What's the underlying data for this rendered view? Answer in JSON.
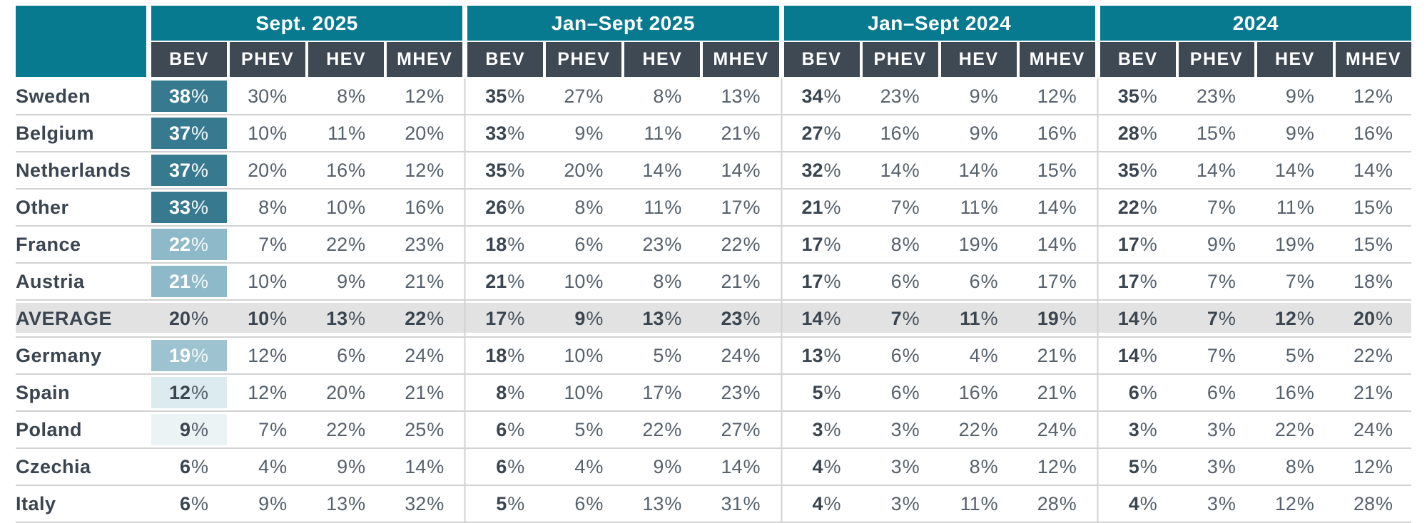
{
  "percent_sign": "%",
  "colors": {
    "teal_header": "#077a8f",
    "dark_header": "#3e4954",
    "average_row_bg": "#e2e2e2",
    "row_line": "#d2d2d2",
    "bold_text": "#3b4550",
    "value_text": "#57616c",
    "bev_fills": {
      "dark": "#377a90",
      "mid": "#8db9c9",
      "mid2": "#9dc3d0",
      "light": "#dcebef",
      "lighter": "#ebf3f5"
    }
  },
  "chart_data": {
    "type": "table",
    "unit": "%",
    "column_groups": [
      "Sept. 2025",
      "Jan–Sept 2025",
      "Jan–Sept 2024",
      "2024"
    ],
    "powertrains": [
      "BEV",
      "PHEV",
      "HEV",
      "MHEV"
    ],
    "rows": [
      {
        "label": "Sweden",
        "bev_fill": "dark",
        "bev_text": "white",
        "is_average": false,
        "values": [
          [
            38,
            30,
            8,
            12
          ],
          [
            35,
            27,
            8,
            13
          ],
          [
            34,
            23,
            9,
            12
          ],
          [
            35,
            23,
            9,
            12
          ]
        ]
      },
      {
        "label": "Belgium",
        "bev_fill": "dark",
        "bev_text": "white",
        "is_average": false,
        "values": [
          [
            37,
            10,
            11,
            20
          ],
          [
            33,
            9,
            11,
            21
          ],
          [
            27,
            16,
            9,
            16
          ],
          [
            28,
            15,
            9,
            16
          ]
        ]
      },
      {
        "label": "Netherlands",
        "bev_fill": "dark",
        "bev_text": "white",
        "is_average": false,
        "values": [
          [
            37,
            20,
            16,
            12
          ],
          [
            35,
            20,
            14,
            14
          ],
          [
            32,
            14,
            14,
            15
          ],
          [
            35,
            14,
            14,
            14
          ]
        ]
      },
      {
        "label": "Other",
        "bev_fill": "dark",
        "bev_text": "white",
        "is_average": false,
        "values": [
          [
            33,
            8,
            10,
            16
          ],
          [
            26,
            8,
            11,
            17
          ],
          [
            21,
            7,
            11,
            14
          ],
          [
            22,
            7,
            11,
            15
          ]
        ]
      },
      {
        "label": "France",
        "bev_fill": "mid",
        "bev_text": "white",
        "is_average": false,
        "values": [
          [
            22,
            7,
            22,
            23
          ],
          [
            18,
            6,
            23,
            22
          ],
          [
            17,
            8,
            19,
            14
          ],
          [
            17,
            9,
            19,
            15
          ]
        ]
      },
      {
        "label": "Austria",
        "bev_fill": "mid",
        "bev_text": "white",
        "is_average": false,
        "values": [
          [
            21,
            10,
            9,
            21
          ],
          [
            21,
            10,
            8,
            21
          ],
          [
            17,
            6,
            6,
            17
          ],
          [
            17,
            7,
            7,
            18
          ]
        ]
      },
      {
        "label": "AVERAGE",
        "bev_fill": "none",
        "bev_text": "dark",
        "is_average": true,
        "values": [
          [
            20,
            10,
            13,
            22
          ],
          [
            17,
            9,
            13,
            23
          ],
          [
            14,
            7,
            11,
            19
          ],
          [
            14,
            7,
            12,
            20
          ]
        ]
      },
      {
        "label": "Germany",
        "bev_fill": "mid2",
        "bev_text": "white",
        "is_average": false,
        "values": [
          [
            19,
            12,
            6,
            24
          ],
          [
            18,
            10,
            5,
            24
          ],
          [
            13,
            6,
            4,
            21
          ],
          [
            14,
            7,
            5,
            22
          ]
        ]
      },
      {
        "label": "Spain",
        "bev_fill": "light",
        "bev_text": "dark",
        "is_average": false,
        "values": [
          [
            12,
            12,
            20,
            21
          ],
          [
            8,
            10,
            17,
            23
          ],
          [
            5,
            6,
            16,
            21
          ],
          [
            6,
            6,
            16,
            21
          ]
        ]
      },
      {
        "label": "Poland",
        "bev_fill": "lighter",
        "bev_text": "dark",
        "is_average": false,
        "values": [
          [
            9,
            7,
            22,
            25
          ],
          [
            6,
            5,
            22,
            27
          ],
          [
            3,
            3,
            22,
            24
          ],
          [
            3,
            3,
            22,
            24
          ]
        ]
      },
      {
        "label": "Czechia",
        "bev_fill": "none",
        "bev_text": "dark",
        "is_average": false,
        "values": [
          [
            6,
            4,
            9,
            14
          ],
          [
            6,
            4,
            9,
            14
          ],
          [
            4,
            3,
            8,
            12
          ],
          [
            5,
            3,
            8,
            12
          ]
        ]
      },
      {
        "label": "Italy",
        "bev_fill": "none",
        "bev_text": "dark",
        "is_average": false,
        "values": [
          [
            6,
            9,
            13,
            32
          ],
          [
            5,
            6,
            13,
            31
          ],
          [
            4,
            3,
            11,
            28
          ],
          [
            4,
            3,
            12,
            28
          ]
        ]
      }
    ]
  }
}
